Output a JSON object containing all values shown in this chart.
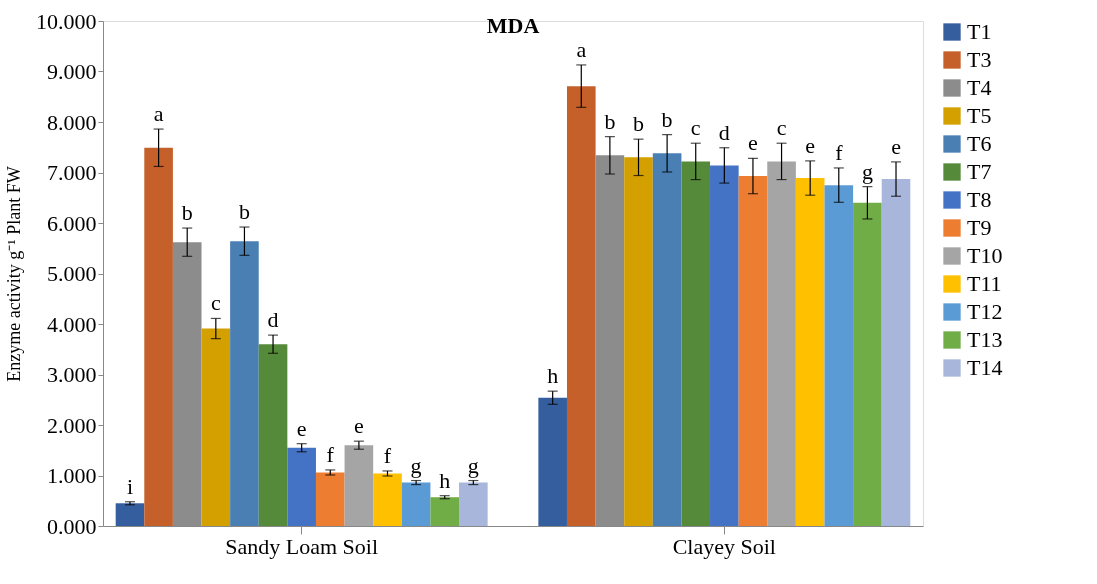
{
  "chart_data": {
    "type": "bar",
    "title": "MDA",
    "ylabel": "Enzyme activity g⁻¹ Plant FW",
    "categories": [
      "Sandy Loam Soil",
      "Clayey Soil"
    ],
    "ylim": [
      0,
      10
    ],
    "yticks": [
      {
        "value": 0,
        "label": "0.000"
      },
      {
        "value": 1,
        "label": "1.000"
      },
      {
        "value": 2,
        "label": "2.000"
      },
      {
        "value": 3,
        "label": "3.000"
      },
      {
        "value": 4,
        "label": "4.000"
      },
      {
        "value": 5,
        "label": "5.000"
      },
      {
        "value": 6,
        "label": "6.000"
      },
      {
        "value": 7,
        "label": "7.000"
      },
      {
        "value": 8,
        "label": "8.000"
      },
      {
        "value": 9,
        "label": "9.000"
      },
      {
        "value": 10,
        "label": "10.000"
      }
    ],
    "grid": false,
    "legend": "right",
    "series": [
      {
        "name": "T1",
        "color": "#355e9f",
        "values": [
          0.45,
          2.54
        ],
        "errors": [
          0.03,
          0.13
        ],
        "value_labels": [
          "i",
          "h"
        ]
      },
      {
        "name": "T3",
        "color": "#c5602a",
        "values": [
          7.49,
          8.71
        ],
        "errors": [
          0.37,
          0.42
        ],
        "value_labels": [
          "a",
          "a"
        ]
      },
      {
        "name": "T4",
        "color": "#8c8c8c",
        "values": [
          5.62,
          7.34
        ],
        "errors": [
          0.28,
          0.37
        ],
        "value_labels": [
          "b",
          "b"
        ]
      },
      {
        "name": "T5",
        "color": "#d4a000",
        "values": [
          3.91,
          7.3
        ],
        "errors": [
          0.2,
          0.36
        ],
        "value_labels": [
          "c",
          "b"
        ]
      },
      {
        "name": "T6",
        "color": "#4a7fb4",
        "values": [
          5.64,
          7.38
        ],
        "errors": [
          0.28,
          0.37
        ],
        "value_labels": [
          "b",
          "b"
        ]
      },
      {
        "name": "T7",
        "color": "#558a3a",
        "values": [
          3.6,
          7.22
        ],
        "errors": [
          0.18,
          0.36
        ],
        "value_labels": [
          "d",
          "c"
        ]
      },
      {
        "name": "T8",
        "color": "#4472c4",
        "values": [
          1.55,
          7.14
        ],
        "errors": [
          0.08,
          0.35
        ],
        "value_labels": [
          "e",
          "d"
        ]
      },
      {
        "name": "T9",
        "color": "#ed7d31",
        "values": [
          1.06,
          6.93
        ],
        "errors": [
          0.05,
          0.35
        ],
        "value_labels": [
          "f",
          "e"
        ]
      },
      {
        "name": "T10",
        "color": "#a5a5a5",
        "values": [
          1.6,
          7.22
        ],
        "errors": [
          0.08,
          0.36
        ],
        "value_labels": [
          "e",
          "c"
        ]
      },
      {
        "name": "T11",
        "color": "#ffc000",
        "values": [
          1.04,
          6.89
        ],
        "errors": [
          0.05,
          0.34
        ],
        "value_labels": [
          "f",
          "e"
        ]
      },
      {
        "name": "T12",
        "color": "#5b9bd5",
        "values": [
          0.86,
          6.75
        ],
        "errors": [
          0.04,
          0.34
        ],
        "value_labels": [
          "g",
          "f"
        ]
      },
      {
        "name": "T13",
        "color": "#70ad47",
        "values": [
          0.57,
          6.4
        ],
        "errors": [
          0.03,
          0.32
        ],
        "value_labels": [
          "h",
          "g"
        ]
      },
      {
        "name": "T14",
        "color": "#a9b6dc",
        "values": [
          0.86,
          6.87
        ],
        "errors": [
          0.04,
          0.34
        ],
        "value_labels": [
          "g",
          "e"
        ]
      }
    ]
  }
}
